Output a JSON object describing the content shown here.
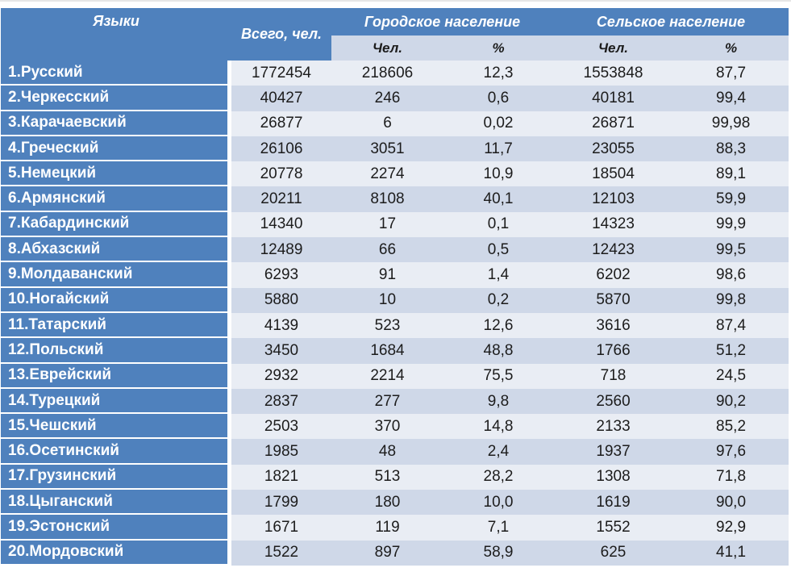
{
  "chart_data": {
    "type": "table",
    "header": {
      "languages": "Языки",
      "total": "Всего, чел.",
      "urban_group": "Городское население",
      "rural_group": "Сельское население",
      "people_label": "Чел.",
      "percent_label": "%"
    },
    "rows": [
      {
        "language": "1.Русский",
        "total": "1772454",
        "urban_people": "218606",
        "urban_percent": "12,3",
        "rural_people": "1553848",
        "rural_percent": "87,7"
      },
      {
        "language": "2.Черкесский",
        "total": "40427",
        "urban_people": "246",
        "urban_percent": "0,6",
        "rural_people": "40181",
        "rural_percent": "99,4"
      },
      {
        "language": "3.Карачаевский",
        "total": "26877",
        "urban_people": "6",
        "urban_percent": "0,02",
        "rural_people": "26871",
        "rural_percent": "99,98"
      },
      {
        "language": "4.Греческий",
        "total": "26106",
        "urban_people": "3051",
        "urban_percent": "11,7",
        "rural_people": "23055",
        "rural_percent": "88,3"
      },
      {
        "language": "5.Немецкий",
        "total": "20778",
        "urban_people": "2274",
        "urban_percent": "10,9",
        "rural_people": "18504",
        "rural_percent": "89,1"
      },
      {
        "language": "6.Армянский",
        "total": "20211",
        "urban_people": "8108",
        "urban_percent": "40,1",
        "rural_people": "12103",
        "rural_percent": "59,9"
      },
      {
        "language": "7.Кабардинский",
        "total": "14340",
        "urban_people": "17",
        "urban_percent": "0,1",
        "rural_people": "14323",
        "rural_percent": "99,9"
      },
      {
        "language": "8.Абхазский",
        "total": "12489",
        "urban_people": "66",
        "urban_percent": "0,5",
        "rural_people": "12423",
        "rural_percent": "99,5"
      },
      {
        "language": "9.Молдаванский",
        "total": "6293",
        "urban_people": "91",
        "urban_percent": "1,4",
        "rural_people": "6202",
        "rural_percent": "98,6"
      },
      {
        "language": "10.Ногайский",
        "total": "5880",
        "urban_people": "10",
        "urban_percent": "0,2",
        "rural_people": "5870",
        "rural_percent": "99,8"
      },
      {
        "language": "11.Татарский",
        "total": "4139",
        "urban_people": "523",
        "urban_percent": "12,6",
        "rural_people": "3616",
        "rural_percent": "87,4"
      },
      {
        "language": "12.Польский",
        "total": "3450",
        "urban_people": "1684",
        "urban_percent": "48,8",
        "rural_people": "1766",
        "rural_percent": "51,2"
      },
      {
        "language": "13.Еврейский",
        "total": "2932",
        "urban_people": "2214",
        "urban_percent": "75,5",
        "rural_people": "718",
        "rural_percent": "24,5"
      },
      {
        "language": "14.Турецкий",
        "total": "2837",
        "urban_people": "277",
        "urban_percent": "9,8",
        "rural_people": "2560",
        "rural_percent": "90,2"
      },
      {
        "language": "15.Чешский",
        "total": "2503",
        "urban_people": "370",
        "urban_percent": "14,8",
        "rural_people": "2133",
        "rural_percent": "85,2"
      },
      {
        "language": "16.Осетинский",
        "total": "1985",
        "urban_people": "48",
        "urban_percent": "2,4",
        "rural_people": "1937",
        "rural_percent": "97,6"
      },
      {
        "language": "17.Грузинский",
        "total": "1821",
        "urban_people": "513",
        "urban_percent": "28,2",
        "rural_people": "1308",
        "rural_percent": "71,8"
      },
      {
        "language": "18.Цыганский",
        "total": "1799",
        "urban_people": "180",
        "urban_percent": "10,0",
        "rural_people": "1619",
        "rural_percent": "90,0"
      },
      {
        "language": "19.Эстонский",
        "total": "1671",
        "urban_people": "119",
        "urban_percent": "7,1",
        "rural_people": "1552",
        "rural_percent": "92,9"
      },
      {
        "language": "20.Мордовский",
        "total": "1522",
        "urban_people": "897",
        "urban_percent": "58,9",
        "rural_people": "625",
        "rural_percent": "41,1"
      }
    ]
  },
  "colors": {
    "header_blue": "#4f81bd",
    "row_light": "#e9edf4",
    "row_dark": "#cfd8e8",
    "border": "#ffffff",
    "text_dark": "#1c1c1c",
    "header_text": "#ffffff"
  }
}
